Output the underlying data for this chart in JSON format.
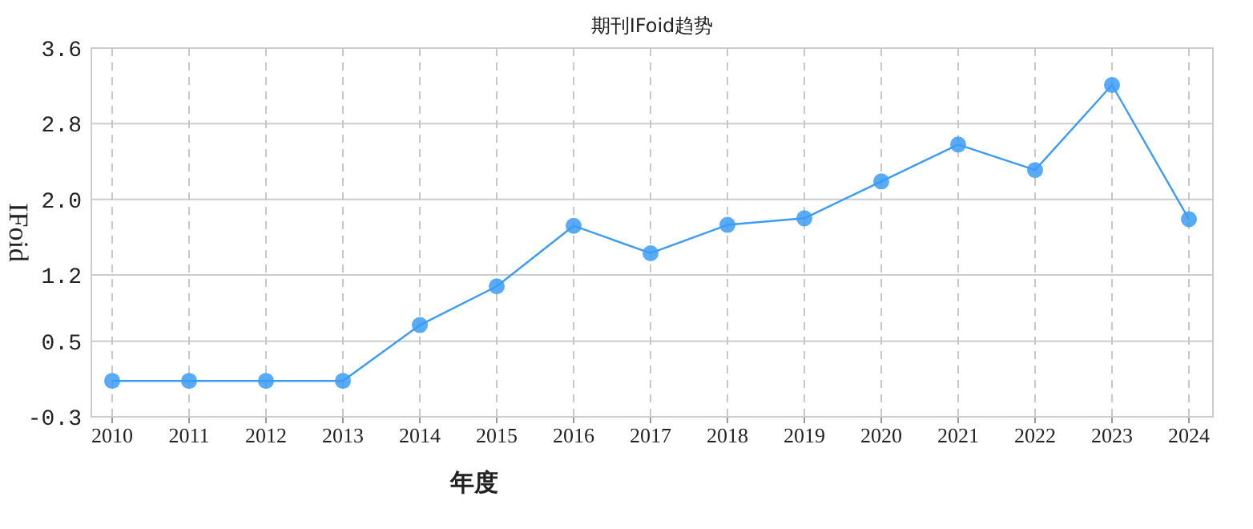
{
  "chart_data": {
    "type": "line",
    "title": "期刊IFoid趋势",
    "xlabel": "年度",
    "ylabel": "IFoid",
    "categories": [
      "2010",
      "2011",
      "2012",
      "2013",
      "2014",
      "2015",
      "2016",
      "2017",
      "2018",
      "2019",
      "2020",
      "2021",
      "2022",
      "2023",
      "2024"
    ],
    "series": [
      {
        "color": "#3c9cf5",
        "values": [
          0.08,
          0.08,
          0.08,
          0.08,
          0.67,
          1.08,
          1.72,
          1.43,
          1.73,
          1.8,
          2.19,
          2.58,
          2.31,
          3.21,
          1.79
        ]
      }
    ],
    "ylim": [
      -0.3,
      3.6
    ],
    "yticks": [
      -0.3,
      0.5,
      1.2,
      {
        "value": 2.0,
        "label": "2.0"
      },
      2.8,
      3.6
    ],
    "grid": true,
    "marker": "circle"
  }
}
